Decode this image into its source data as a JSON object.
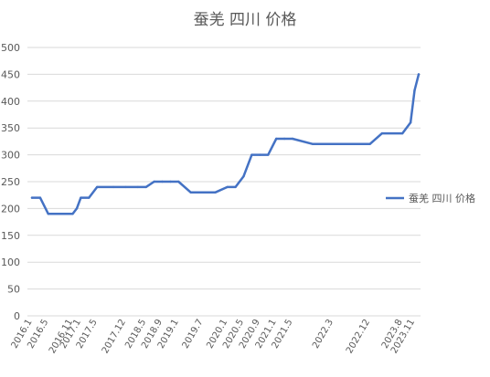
{
  "chart_data": {
    "type": "line",
    "title": "蚕羌 四川 价格",
    "xlabel": "",
    "ylabel": "",
    "ylim": [
      0,
      500
    ],
    "y_ticks": [
      0,
      50,
      100,
      150,
      200,
      250,
      300,
      350,
      400,
      450,
      500
    ],
    "grid": true,
    "legend_position": "right",
    "x_tick_labels": [
      "2016.1",
      "2016.5",
      "2016.11",
      "2017.1",
      "2017.5",
      "2017.12",
      "2018.5",
      "2018.9",
      "2019.1",
      "2019.7",
      "2020.1",
      "2020.5",
      "2020.9",
      "2021.1",
      "2021.5",
      "2022.3",
      "2022.12",
      "2023.8",
      "2023.11"
    ],
    "x": [
      "2016.1",
      "2016.3",
      "2016.5",
      "2016.8",
      "2016.11",
      "2016.12",
      "2017.1",
      "2017.3",
      "2017.5",
      "2017.9",
      "2017.12",
      "2018.3",
      "2018.5",
      "2018.7",
      "2018.9",
      "2018.11",
      "2019.1",
      "2019.4",
      "2019.7",
      "2019.10",
      "2020.1",
      "2020.3",
      "2020.5",
      "2020.7",
      "2020.9",
      "2020.11",
      "2021.1",
      "2021.3",
      "2021.5",
      "2021.10",
      "2022.3",
      "2022.8",
      "2022.12",
      "2023.3",
      "2023.8",
      "2023.10",
      "2023.11",
      "2023.12"
    ],
    "series": [
      {
        "name": "蚕羌 四川 价格",
        "color": "#4472c4",
        "values": [
          220,
          220,
          190,
          190,
          190,
          200,
          220,
          220,
          240,
          240,
          240,
          240,
          240,
          250,
          250,
          250,
          250,
          230,
          230,
          230,
          240,
          240,
          260,
          300,
          300,
          300,
          330,
          330,
          330,
          320,
          320,
          320,
          320,
          340,
          340,
          360,
          420,
          450
        ]
      }
    ]
  }
}
